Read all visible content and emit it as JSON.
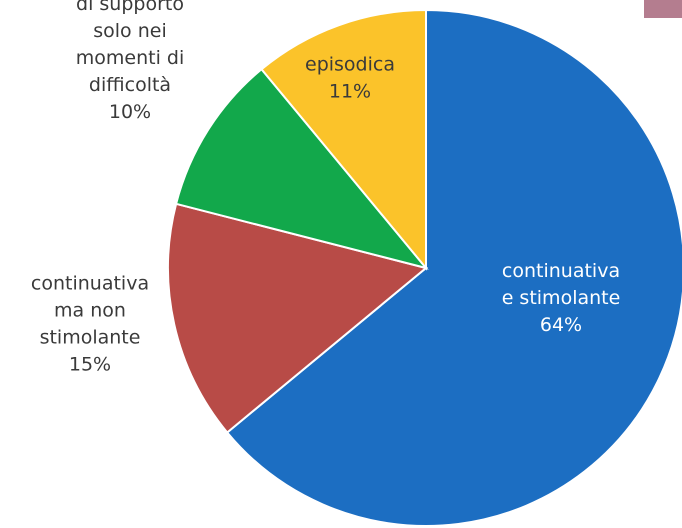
{
  "chart_data": {
    "type": "pie",
    "title": "",
    "slices": [
      {
        "label": [
          "continuativa",
          "e stimolante"
        ],
        "value": 64,
        "value_label": "64%",
        "color": "#1c6ec2",
        "text_color": "#ffffff"
      },
      {
        "label": [
          "continuativa",
          "ma non",
          "stimolante"
        ],
        "value": 15,
        "value_label": "15%",
        "color": "#b84b47",
        "text_color": "#3a3a3a"
      },
      {
        "label": [
          "di supporto",
          "solo nei",
          "momenti di",
          "difficoltà"
        ],
        "value": 10,
        "value_label": "10%",
        "color": "#12a84b",
        "text_color": "#3a3a3a"
      },
      {
        "label": [
          "episodica"
        ],
        "value": 11,
        "value_label": "11%",
        "color": "#fbc32a",
        "text_color": "#3a3a3a"
      }
    ],
    "legend": "none"
  },
  "decor": {
    "corner_color": "#b47d8f"
  }
}
